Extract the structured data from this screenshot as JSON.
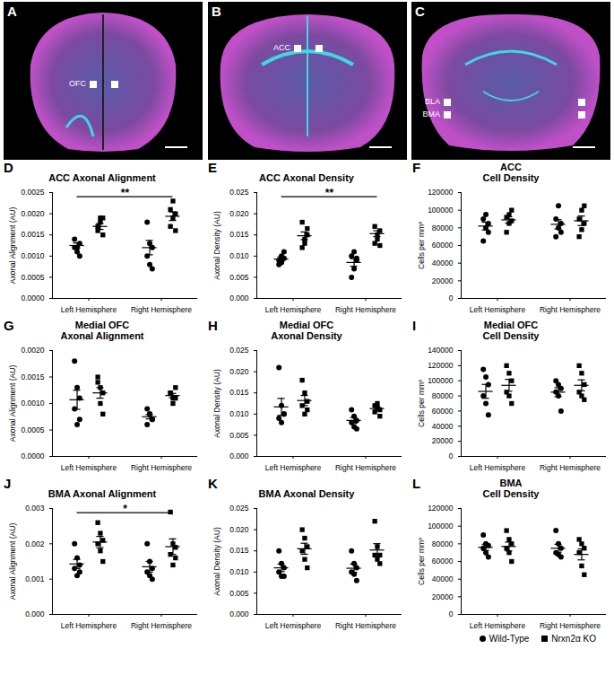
{
  "images": [
    {
      "panel": "A",
      "regions": [
        "OFC"
      ]
    },
    {
      "panel": "B",
      "regions": [
        "ACC"
      ]
    },
    {
      "panel": "C",
      "regions": [
        "BLA",
        "BMA"
      ]
    }
  ],
  "chart_data": [
    {
      "panel": "D",
      "type": "scatter",
      "title": "ACC Axonal Alignment",
      "y_label": "Axonal Alignment (AU)",
      "categories": [
        "Left Hemisphere",
        "Right Hemisphere"
      ],
      "ylim": [
        0,
        0.0025
      ],
      "yticks": [
        {
          "value": 0,
          "label": "0.0000"
        },
        0.0005,
        {
          "value": 0.001,
          "label": "0.0010"
        },
        0.0015,
        {
          "value": 0.002,
          "label": "0.0020"
        },
        0.0025
      ],
      "significance": "**",
      "series": [
        {
          "name": "Wild-Type",
          "color": "#000000",
          "marker": "circle",
          "values": [
            [
              0.0012,
              0.0011,
              0.0013,
              0.0014,
              0.0012,
              0.001
            ],
            [
              0.0018,
              0.0013,
              0.0012,
              0.001,
              0.0008,
              0.0007
            ]
          ],
          "mean": [
            0.00125,
            0.0012
          ],
          "sem": [
            6e-05,
            0.00017
          ]
        },
        {
          "name": "Nrxn2α KO",
          "color": "#000000",
          "marker": "square",
          "values": [
            [
              0.0017,
              0.0018,
              0.0015,
              0.0016,
              0.0019,
              0.0019
            ],
            [
              0.0017,
              0.0019,
              0.002,
              0.0021,
              0.0023,
              0.0016
            ]
          ],
          "mean": [
            0.0017,
            0.00194
          ],
          "sem": [
            7e-05,
            0.0001
          ]
        }
      ]
    },
    {
      "panel": "E",
      "type": "scatter",
      "title": "ACC Axonal Density",
      "y_label": "Axonal Density (AU)",
      "categories": [
        "Left Hemisphere",
        "Right Hemisphere"
      ],
      "ylim": [
        0,
        0.025
      ],
      "yticks": [
        {
          "value": 0,
          "label": "0.000"
        },
        0.005,
        {
          "value": 0.01,
          "label": "0.010"
        },
        0.015,
        {
          "value": 0.02,
          "label": "0.020"
        },
        0.025
      ],
      "significance": "**",
      "series": [
        {
          "name": "Wild-Type",
          "color": "#000000",
          "marker": "circle",
          "values": [
            [
              0.009,
              0.01,
              0.011,
              0.008,
              0.0085,
              0.0095
            ],
            [
              0.005,
              0.007,
              0.009,
              0.01,
              0.011,
              0.0095
            ]
          ],
          "mean": [
            0.0093,
            0.0085
          ],
          "sem": [
            0.0005,
            0.0009
          ]
        },
        {
          "name": "Nrxn2α KO",
          "color": "#000000",
          "marker": "square",
          "values": [
            [
              0.012,
              0.014,
              0.015,
              0.018,
              0.013,
              0.0165
            ],
            [
              0.013,
              0.014,
              0.016,
              0.017,
              0.015,
              0.0125
            ]
          ],
          "mean": [
            0.0148,
            0.0153
          ],
          "sem": [
            0.0009,
            0.0007
          ]
        }
      ]
    },
    {
      "panel": "F",
      "type": "scatter",
      "title": "ACC\nCell Density",
      "y_label": "Cells per mm³",
      "categories": [
        "Left Hemisphere",
        "Right Hemisphere"
      ],
      "ylim": [
        0,
        120000
      ],
      "yticks": [
        0,
        20000,
        40000,
        60000,
        80000,
        100000,
        120000
      ],
      "series": [
        {
          "name": "Wild-Type",
          "color": "#000000",
          "marker": "circle",
          "values": [
            [
              65000,
              80000,
              85000,
              90000,
              95000,
              75000
            ],
            [
              70000,
              80000,
              85000,
              90000,
              105000,
              75000
            ]
          ],
          "mean": [
            82000,
            84000
          ],
          "sem": [
            4400,
            5200
          ]
        },
        {
          "name": "Nrxn2α KO",
          "color": "#000000",
          "marker": "square",
          "values": [
            [
              75000,
              85000,
              88000,
              92000,
              95000,
              100000
            ],
            [
              70000,
              78000,
              85000,
              90000,
              100000,
              105000
            ]
          ],
          "mean": [
            89000,
            88000
          ],
          "sem": [
            3600,
            5400
          ]
        }
      ]
    },
    {
      "panel": "G",
      "type": "scatter",
      "title": "Medial OFC\nAxonal Alignment",
      "y_label": "Axonal Alignment (AU)",
      "categories": [
        "Left Hemisphere",
        "Right Hemisphere"
      ],
      "ylim": [
        0,
        0.002
      ],
      "yticks": [
        {
          "value": 0,
          "label": "0.0000"
        },
        0.0005,
        {
          "value": 0.001,
          "label": "0.0010"
        },
        0.0015,
        {
          "value": 0.002,
          "label": "0.0020"
        }
      ],
      "series": [
        {
          "name": "Wild-Type",
          "color": "#000000",
          "marker": "circle",
          "values": [
            [
              0.0018,
              0.0013,
              0.0011,
              0.0009,
              0.0006,
              0.0007
            ],
            [
              0.0009,
              0.0008,
              0.0007,
              0.0006,
              0.0008,
              0.0007
            ]
          ],
          "mean": [
            0.00107,
            0.00075
          ],
          "sem": [
            0.00018,
            4e-05
          ]
        },
        {
          "name": "Nrxn2α KO",
          "color": "#000000",
          "marker": "square",
          "values": [
            [
              0.0015,
              0.0013,
              0.0012,
              0.0014,
              0.001,
              0.0008
            ],
            [
              0.0012,
              0.0011,
              0.0013,
              0.0012,
              0.001,
              0.0011
            ]
          ],
          "mean": [
            0.0012,
            0.00115
          ],
          "sem": [
            0.0001,
            4e-05
          ]
        }
      ]
    },
    {
      "panel": "H",
      "type": "scatter",
      "title": "Medial OFC\nAxonal Density",
      "y_label": "Axonal Density (AU)",
      "categories": [
        "Left Hemisphere",
        "Right Hemisphere"
      ],
      "ylim": [
        0,
        0.025
      ],
      "yticks": [
        {
          "value": 0,
          "label": "0.000"
        },
        0.005,
        {
          "value": 0.01,
          "label": "0.010"
        },
        0.015,
        {
          "value": 0.02,
          "label": "0.020"
        },
        0.025
      ],
      "series": [
        {
          "name": "Wild-Type",
          "color": "#000000",
          "marker": "circle",
          "values": [
            [
              0.021,
              0.012,
              0.01,
              0.009,
              0.008,
              0.01
            ],
            [
              0.011,
              0.0095,
              0.0085,
              0.008,
              0.007,
              0.0065
            ]
          ],
          "mean": [
            0.0117,
            0.0085
          ],
          "sem": [
            0.002,
            0.0007
          ]
        },
        {
          "name": "Nrxn2α KO",
          "color": "#000000",
          "marker": "square",
          "values": [
            [
              0.018,
              0.015,
              0.013,
              0.012,
              0.01,
              0.011
            ],
            [
              0.012,
              0.0115,
              0.011,
              0.0105,
              0.0125,
              0.0095
            ]
          ],
          "mean": [
            0.0132,
            0.0113
          ],
          "sem": [
            0.0012,
            0.0004
          ]
        }
      ]
    },
    {
      "panel": "I",
      "type": "scatter",
      "title": "Medial  OFC\nCell Density",
      "y_label": "Cells per mm³",
      "categories": [
        "Left Hemisphere",
        "Right Hemisphere"
      ],
      "ylim": [
        0,
        140000
      ],
      "yticks": [
        0,
        20000,
        40000,
        60000,
        80000,
        100000,
        120000,
        140000
      ],
      "series": [
        {
          "name": "Wild-Type",
          "color": "#000000",
          "marker": "circle",
          "values": [
            [
              115000,
              105000,
              95000,
              80000,
              70000,
              55000
            ],
            [
              100000,
              95000,
              90000,
              85000,
              80000,
              60000
            ]
          ],
          "mean": [
            86000,
            85000
          ],
          "sem": [
            9200,
            5800
          ]
        },
        {
          "name": "Nrxn2α KO",
          "color": "#000000",
          "marker": "square",
          "values": [
            [
              120000,
              110000,
              100000,
              85000,
              80000,
              70000
            ],
            [
              120000,
              110000,
              95000,
              85000,
              80000,
              75000
            ]
          ],
          "mean": [
            94000,
            94000
          ],
          "sem": [
            7900,
            7200
          ]
        }
      ]
    },
    {
      "panel": "J",
      "type": "scatter",
      "title": "BMA Axonal Alignment",
      "y_label": "Axonal Alignment (AU)",
      "categories": [
        "Left Hemisphere",
        "Right Hemisphere"
      ],
      "ylim": [
        0,
        0.003
      ],
      "yticks": [
        {
          "value": 0,
          "label": "0.000"
        },
        0.001,
        0.002,
        0.003
      ],
      "significance": "*",
      "series": [
        {
          "name": "Wild-Type",
          "color": "#000000",
          "marker": "circle",
          "values": [
            [
              0.002,
              0.0016,
              0.0014,
              0.0013,
              0.0011,
              0.0012
            ],
            [
              0.002,
              0.0015,
              0.0013,
              0.0012,
              0.0011,
              0.001
            ]
          ],
          "mean": [
            0.00143,
            0.00135
          ],
          "sem": [
            0.00013,
            0.00015
          ]
        },
        {
          "name": "Nrxn2α KO",
          "color": "#000000",
          "marker": "square",
          "values": [
            [
              0.0026,
              0.0023,
              0.0021,
              0.002,
              0.0018,
              0.0015
            ],
            [
              0.0029,
              0.002,
              0.0019,
              0.0017,
              0.0014,
              0.0016
            ]
          ],
          "mean": [
            0.00205,
            0.00192
          ],
          "sem": [
            0.00016,
            0.00022
          ]
        }
      ]
    },
    {
      "panel": "K",
      "type": "scatter",
      "title": "BMA Axonal Density",
      "y_label": "Axonal Density (AU)",
      "categories": [
        "Left Hemisphere",
        "Right Hemisphere"
      ],
      "ylim": [
        0,
        0.025
      ],
      "yticks": [
        {
          "value": 0,
          "label": "0.000"
        },
        0.005,
        {
          "value": 0.01,
          "label": "0.010"
        },
        0.015,
        {
          "value": 0.02,
          "label": "0.020"
        },
        0.025
      ],
      "series": [
        {
          "name": "Wild-Type",
          "color": "#000000",
          "marker": "circle",
          "values": [
            [
              0.015,
              0.012,
              0.011,
              0.01,
              0.009,
              0.009
            ],
            [
              0.015,
              0.012,
              0.011,
              0.01,
              0.0095,
              0.008
            ]
          ],
          "mean": [
            0.011,
            0.0109
          ],
          "sem": [
            0.0009,
            0.001
          ]
        },
        {
          "name": "Nrxn2α KO",
          "color": "#000000",
          "marker": "square",
          "values": [
            [
              0.02,
              0.018,
              0.016,
              0.015,
              0.013,
              0.011
            ],
            [
              0.022,
              0.016,
              0.014,
              0.014,
              0.013,
              0.012
            ]
          ],
          "mean": [
            0.0155,
            0.0152
          ],
          "sem": [
            0.0013,
            0.0015
          ]
        }
      ]
    },
    {
      "panel": "L",
      "type": "scatter",
      "title": "BMA\nCell Density",
      "y_label": "Cells per mm³",
      "categories": [
        "Left Hemisphere",
        "Right Hemisphere"
      ],
      "ylim": [
        0,
        120000
      ],
      "yticks": [
        0,
        20000,
        40000,
        60000,
        80000,
        100000,
        120000
      ],
      "series": [
        {
          "name": "Wild-Type",
          "color": "#000000",
          "marker": "circle",
          "values": [
            [
              90000,
              80000,
              78000,
              75000,
              70000,
              65000
            ],
            [
              95000,
              80000,
              75000,
              70000,
              68000,
              65000
            ]
          ],
          "mean": [
            76000,
            75000
          ],
          "sem": [
            3500,
            4500
          ]
        },
        {
          "name": "Nrxn2α KO",
          "color": "#000000",
          "marker": "square",
          "values": [
            [
              95000,
              85000,
              80000,
              75000,
              70000,
              60000
            ],
            [
              85000,
              80000,
              75000,
              70000,
              55000,
              45000
            ]
          ],
          "mean": [
            77000,
            68000
          ],
          "sem": [
            5000,
            6200
          ]
        }
      ]
    }
  ]
}
